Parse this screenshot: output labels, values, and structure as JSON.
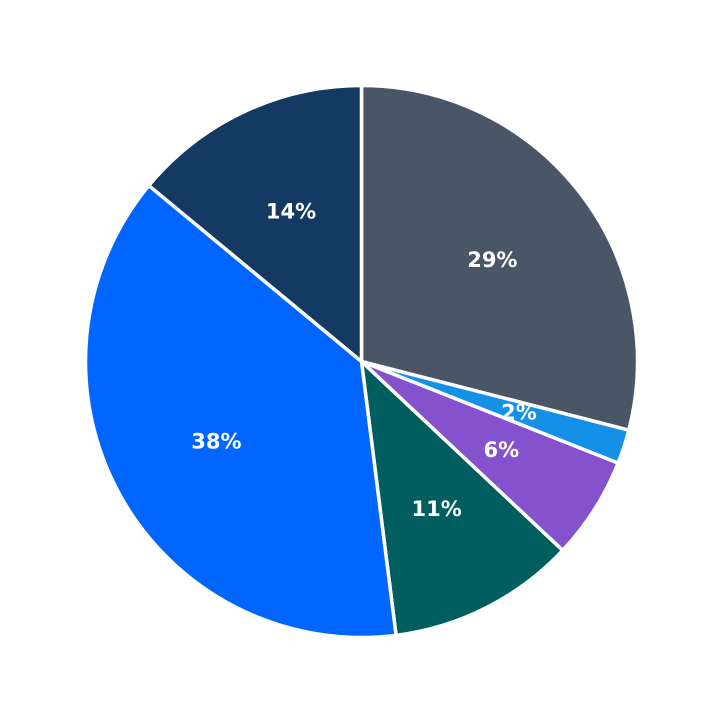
{
  "chart_data": {
    "type": "pie",
    "start_angle_deg": 90,
    "direction": "clockwise",
    "slices": [
      {
        "label": "29%",
        "value": 29,
        "color": "#4a5565"
      },
      {
        "label": "2%",
        "value": 2,
        "color": "#1490e6"
      },
      {
        "label": "6%",
        "value": 6,
        "color": "#8452cd"
      },
      {
        "label": "11%",
        "value": 11,
        "color": "#005e5e"
      },
      {
        "label": "38%",
        "value": 38,
        "color": "#0066ff"
      },
      {
        "label": "14%",
        "value": 14,
        "color": "#143962"
      }
    ]
  }
}
